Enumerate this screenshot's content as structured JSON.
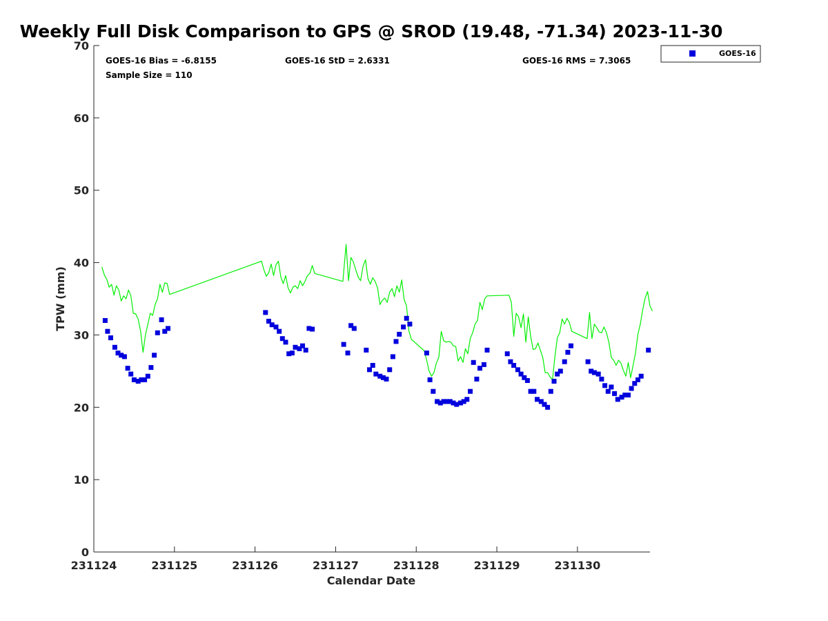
{
  "chart_data": {
    "type": "scatter",
    "title": "Weekly Full Disk Comparison to GPS @ SROD (19.48, -71.34) 2023-11-30",
    "xlabel": "Calendar Date",
    "ylabel": "TPW (mm)",
    "xlim": [
      231124,
      231130.9
    ],
    "ylim": [
      0,
      70
    ],
    "x_ticks": [
      "231124",
      "231125",
      "231126",
      "231127",
      "231128",
      "231129",
      "231130"
    ],
    "y_ticks": [
      "0",
      "10",
      "20",
      "30",
      "40",
      "50",
      "60",
      "70"
    ],
    "grid": false,
    "legend_position": "top-right (outside plot)",
    "stats": {
      "bias": "GOES-16 Bias = -6.8155",
      "std": "GOES-16 StD = 2.6331",
      "rms": "GOES-16 RMS = 7.3065",
      "sample_size": "Sample Size = 110"
    },
    "colors": {
      "goes": "#0000dd",
      "gps": "#00ee00",
      "axes": "#262626"
    },
    "series": [
      {
        "name": "GOES-16",
        "style": "square-markers",
        "x": [
          231124.14,
          231124.17,
          231124.21,
          231124.26,
          231124.3,
          231124.34,
          231124.38,
          231124.42,
          231124.46,
          231124.5,
          231124.55,
          231124.59,
          231124.63,
          231124.67,
          231124.71,
          231124.75,
          231124.79,
          231124.84,
          231124.88,
          231124.92,
          231126.13,
          231126.17,
          231126.21,
          231126.26,
          231126.3,
          231126.34,
          231126.38,
          231126.42,
          231126.46,
          231126.5,
          231126.55,
          231126.59,
          231126.63,
          231126.67,
          231126.71,
          231127.1,
          231127.15,
          231127.19,
          231127.23,
          231127.38,
          231127.42,
          231127.46,
          231127.5,
          231127.55,
          231127.59,
          231127.63,
          231127.67,
          231127.71,
          231127.75,
          231127.79,
          231127.84,
          231127.88,
          231127.92,
          231128.13,
          231128.17,
          231128.21,
          231128.26,
          231128.3,
          231128.34,
          231128.38,
          231128.42,
          231128.46,
          231128.5,
          231128.55,
          231128.59,
          231128.63,
          231128.67,
          231128.71,
          231128.75,
          231128.79,
          231128.84,
          231128.88,
          231129.13,
          231129.17,
          231129.21,
          231129.26,
          231129.3,
          231129.34,
          231129.38,
          231129.42,
          231129.46,
          231129.5,
          231129.55,
          231129.59,
          231129.63,
          231129.67,
          231129.71,
          231129.75,
          231129.79,
          231129.84,
          231129.88,
          231129.92,
          231130.13,
          231130.17,
          231130.21,
          231130.26,
          231130.3,
          231130.34,
          231130.38,
          231130.42,
          231130.46,
          231130.5,
          231130.55,
          231130.59,
          231130.63,
          231130.67,
          231130.71,
          231130.75,
          231130.79,
          231130.88
        ],
        "y": [
          32.0,
          30.5,
          29.6,
          28.3,
          27.5,
          27.2,
          27.0,
          25.4,
          24.6,
          23.8,
          23.6,
          23.8,
          23.8,
          24.3,
          25.5,
          27.2,
          30.3,
          32.1,
          30.5,
          30.9,
          33.1,
          31.9,
          31.4,
          31.1,
          30.5,
          29.5,
          29.0,
          27.4,
          27.5,
          28.3,
          28.1,
          28.5,
          27.9,
          30.9,
          30.8,
          28.7,
          27.5,
          31.3,
          30.9,
          27.9,
          25.2,
          25.8,
          24.6,
          24.3,
          24.1,
          23.9,
          25.2,
          27.0,
          29.1,
          30.1,
          31.1,
          32.3,
          31.5,
          27.5,
          23.8,
          22.2,
          20.8,
          20.6,
          20.8,
          20.8,
          20.8,
          20.6,
          20.4,
          20.6,
          20.8,
          21.1,
          22.2,
          26.2,
          23.9,
          25.4,
          25.9,
          27.9,
          27.4,
          26.3,
          25.8,
          25.2,
          24.6,
          24.1,
          23.7,
          22.2,
          22.2,
          21.1,
          20.8,
          20.4,
          20.0,
          22.2,
          23.6,
          24.6,
          25.0,
          26.3,
          27.6,
          28.5,
          26.3,
          25.0,
          24.8,
          24.6,
          23.9,
          23.0,
          22.2,
          22.8,
          21.9,
          21.1,
          21.4,
          21.7,
          21.7,
          22.6,
          23.3,
          23.8,
          24.3,
          27.9
        ]
      },
      {
        "name": "",
        "style": "line",
        "x": [
          231124.1,
          231124.13,
          231124.16,
          231124.19,
          231124.22,
          231124.25,
          231124.28,
          231124.31,
          231124.34,
          231124.37,
          231124.4,
          231124.43,
          231124.46,
          231124.49,
          231124.52,
          231124.55,
          231124.58,
          231124.61,
          231124.64,
          231124.67,
          231124.7,
          231124.73,
          231124.76,
          231124.79,
          231124.82,
          231124.85,
          231124.88,
          231124.91,
          231124.94,
          231126.08,
          231126.11,
          231126.14,
          231126.17,
          231126.2,
          231126.23,
          231126.26,
          231126.29,
          231126.32,
          231126.35,
          231126.38,
          231126.41,
          231126.44,
          231126.47,
          231126.5,
          231126.53,
          231126.56,
          231126.59,
          231126.62,
          231126.65,
          231126.68,
          231126.71,
          231126.74,
          231127.09,
          231127.13,
          231127.16,
          231127.19,
          231127.22,
          231127.25,
          231127.28,
          231127.31,
          231127.34,
          231127.37,
          231127.4,
          231127.43,
          231127.46,
          231127.49,
          231127.52,
          231127.55,
          231127.58,
          231127.61,
          231127.64,
          231127.67,
          231127.7,
          231127.73,
          231127.76,
          231127.79,
          231127.82,
          231127.85,
          231127.88,
          231127.91,
          231127.94,
          231128.1,
          231128.13,
          231128.16,
          231128.19,
          231128.22,
          231128.25,
          231128.28,
          231128.31,
          231128.34,
          231128.37,
          231128.4,
          231128.43,
          231128.46,
          231128.49,
          231128.52,
          231128.55,
          231128.58,
          231128.61,
          231128.64,
          231128.67,
          231128.7,
          231128.73,
          231128.76,
          231128.79,
          231128.82,
          231128.85,
          231128.88,
          231129.15,
          231129.18,
          231129.21,
          231129.24,
          231129.27,
          231129.3,
          231129.33,
          231129.36,
          231129.39,
          231129.42,
          231129.45,
          231129.48,
          231129.51,
          231129.54,
          231129.57,
          231129.6,
          231129.63,
          231129.66,
          231129.69,
          231129.72,
          231129.75,
          231129.78,
          231129.81,
          231129.84,
          231129.87,
          231129.9,
          231129.93,
          231130.12,
          231130.15,
          231130.18,
          231130.21,
          231130.24,
          231130.27,
          231130.3,
          231130.33,
          231130.36,
          231130.39,
          231130.42,
          231130.45,
          231130.48,
          231130.51,
          231130.54,
          231130.57,
          231130.6,
          231130.63,
          231130.66,
          231130.69,
          231130.72,
          231130.75,
          231130.78,
          231130.81,
          231130.84,
          231130.87,
          231130.9,
          231130.93
        ],
        "y": [
          39.4,
          38.3,
          37.7,
          36.6,
          37.0,
          35.5,
          36.8,
          36.2,
          34.7,
          35.4,
          35.0,
          36.2,
          35.4,
          33.0,
          32.9,
          32.2,
          30.5,
          27.6,
          30.0,
          31.5,
          33.0,
          32.7,
          34.2,
          35.0,
          37.0,
          35.9,
          37.2,
          37.1,
          35.6,
          40.2,
          39.0,
          38.1,
          38.6,
          39.8,
          38.2,
          39.7,
          40.2,
          38.0,
          37.1,
          38.2,
          36.5,
          35.8,
          36.6,
          36.8,
          36.4,
          37.5,
          36.8,
          37.4,
          38.2,
          38.5,
          39.6,
          38.5,
          37.4,
          42.5,
          37.5,
          40.7,
          40.1,
          39.0,
          38.0,
          37.5,
          39.5,
          40.4,
          37.8,
          37.0,
          37.9,
          37.4,
          36.5,
          34.2,
          34.8,
          35.1,
          34.5,
          35.9,
          36.4,
          35.3,
          36.8,
          35.9,
          37.6,
          34.9,
          34.0,
          30.5,
          29.4,
          27.8,
          26.5,
          25.0,
          24.3,
          24.8,
          26.1,
          26.9,
          30.5,
          29.2,
          29.0,
          29.1,
          29.0,
          28.5,
          28.4,
          26.4,
          27.0,
          26.2,
          28.1,
          27.4,
          29.5,
          30.3,
          31.5,
          32.0,
          34.5,
          33.5,
          35.0,
          35.4,
          35.5,
          34.5,
          29.8,
          33.0,
          32.5,
          31.0,
          32.9,
          29.0,
          32.5,
          29.8,
          28.0,
          28.1,
          28.9,
          27.9,
          26.9,
          24.8,
          24.8,
          24.2,
          23.8,
          27.0,
          29.6,
          30.3,
          32.2,
          31.5,
          32.3,
          31.7,
          30.5,
          29.5,
          33.1,
          29.5,
          31.5,
          31.0,
          30.4,
          30.3,
          31.1,
          30.3,
          29.0,
          26.9,
          26.5,
          25.8,
          26.5,
          26.1,
          25.1,
          24.3,
          26.2,
          24.1,
          25.8,
          27.5,
          30.1,
          31.5,
          33.5,
          35.1,
          36.0,
          34.0,
          33.3
        ]
      }
    ]
  }
}
